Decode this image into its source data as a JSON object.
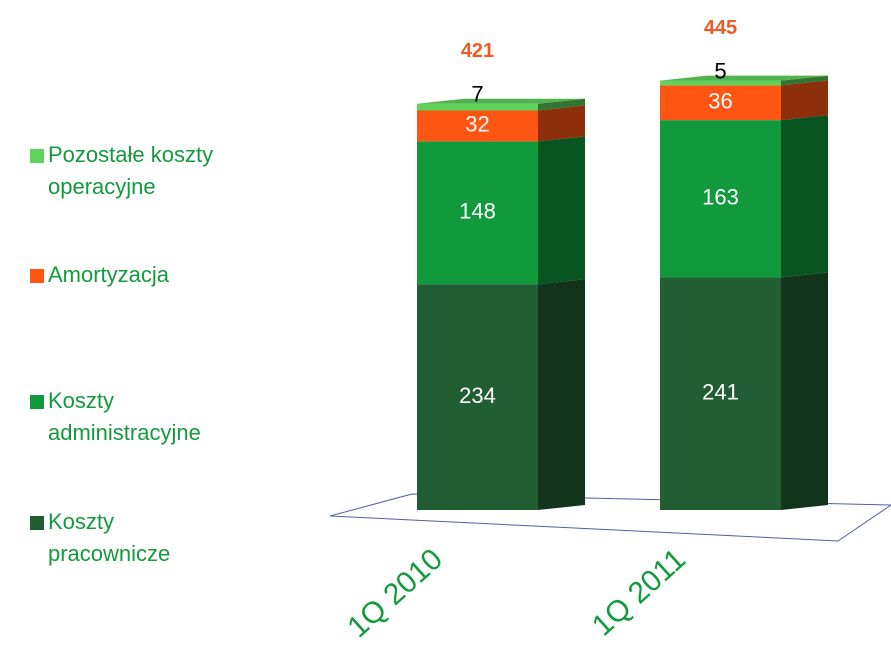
{
  "chart_data": {
    "type": "stacked-bar-3d",
    "categories": [
      "1Q 2010",
      "1Q 2011"
    ],
    "series": [
      {
        "name": "Koszty pracownicze",
        "color": "#215e33",
        "label_color": "#ffffff",
        "values": [
          234,
          241
        ]
      },
      {
        "name": "Koszty administracyjne",
        "color": "#109a3c",
        "label_color": "#ffffff",
        "values": [
          148,
          163
        ]
      },
      {
        "name": "Amortyzacja",
        "color": "#ff5512",
        "label_color": "#ffffff",
        "values": [
          32,
          36
        ]
      },
      {
        "name": "Pozostałe koszty operacyjne",
        "color": "#5fd35a",
        "label_color": "#000000",
        "values": [
          7,
          5
        ]
      }
    ],
    "totals": [
      421,
      445
    ],
    "totals_color": "#f15a22"
  }
}
